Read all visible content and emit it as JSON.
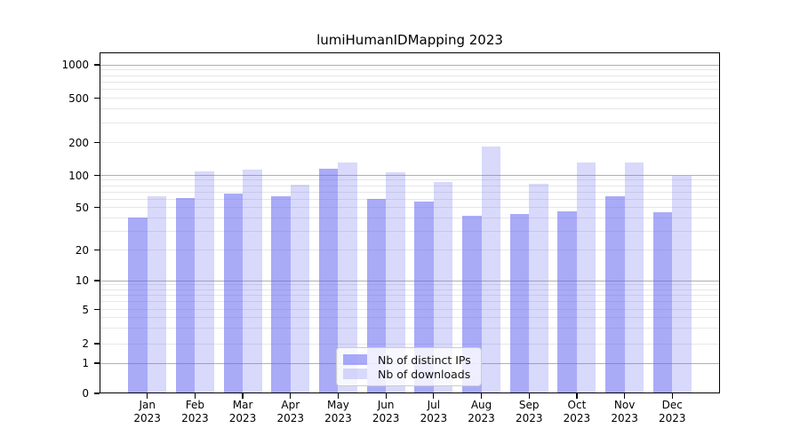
{
  "title": "lumiHumanIDMapping 2023",
  "legend": [
    {
      "label": "Nb of distinct IPs",
      "color": "rgba(99,102,241,0.55)"
    },
    {
      "label": "Nb of downloads",
      "color": "rgba(99,102,241,0.25)"
    }
  ],
  "chart_data": {
    "type": "bar",
    "title": "lumiHumanIDMapping 2023",
    "categories": [
      "Jan",
      "Feb",
      "Mar",
      "Apr",
      "May",
      "Jun",
      "Jul",
      "Aug",
      "Sep",
      "Oct",
      "Nov",
      "Dec"
    ],
    "x_year": "2023",
    "series": [
      {
        "name": "Nb of distinct IPs",
        "slug": "distinct-ips",
        "color": "rgba(99,102,241,0.55)",
        "values": [
          40,
          61,
          67,
          64,
          116,
          60,
          57,
          42,
          43,
          46,
          63,
          45
        ]
      },
      {
        "name": "Nb of downloads",
        "slug": "downloads",
        "color": "rgba(99,102,241,0.25)",
        "values": [
          64,
          108,
          112,
          82,
          130,
          106,
          86,
          183,
          83,
          131,
          132,
          100
        ]
      }
    ],
    "yticks": [
      0,
      1,
      2,
      5,
      10,
      20,
      50,
      100,
      200,
      500,
      1000
    ],
    "ylim": [
      0,
      1000
    ],
    "yscale": "log-with-zero",
    "grid": "horizontal major (decades) + minor (log subdivisions)",
    "legend_position": "lower center inside plot",
    "xlabel": "",
    "ylabel": ""
  }
}
